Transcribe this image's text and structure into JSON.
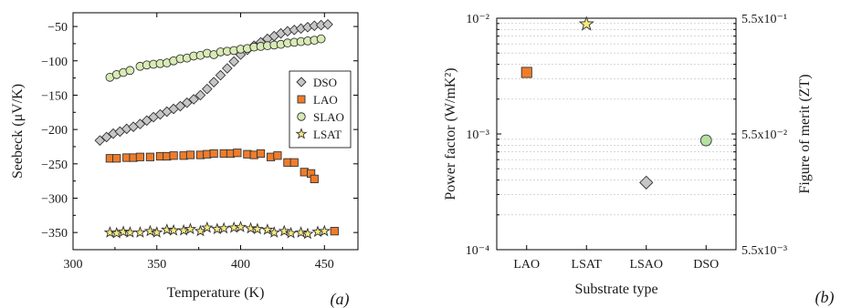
{
  "chart_data": [
    {
      "type": "scatter",
      "xlabel": "Temperature (K)",
      "ylabel": "Seebeck (μV/K)",
      "panel_label": "(a)",
      "xlim": [
        300,
        470
      ],
      "ylim": [
        -375,
        -30
      ],
      "xticks": [
        300,
        350,
        400,
        450
      ],
      "yticks": [
        -50,
        -100,
        -150,
        -200,
        -250,
        -300,
        -350
      ],
      "legend_position": "right",
      "grid": false,
      "series": [
        {
          "name": "DSO",
          "marker": "diamond",
          "color": "#c6c6c6",
          "x": [
            316,
            320,
            324,
            328,
            332,
            336,
            340,
            344,
            348,
            352,
            356,
            360,
            364,
            368,
            372,
            376,
            380,
            384,
            388,
            392,
            396,
            400,
            404,
            408,
            412,
            416,
            420,
            424,
            428,
            432,
            436,
            440,
            444,
            448,
            452
          ],
          "y": [
            -216,
            -211,
            -206,
            -203,
            -199,
            -196,
            -192,
            -187,
            -182,
            -178,
            -174,
            -170,
            -166,
            -161,
            -156,
            -150,
            -141,
            -131,
            -121,
            -111,
            -101,
            -91,
            -84,
            -78,
            -73,
            -68,
            -64,
            -60,
            -57,
            -55,
            -53,
            -51,
            -49,
            -48,
            -47
          ]
        },
        {
          "name": "LAO",
          "color": "#ee7d2b",
          "marker": "square",
          "x": [
            322,
            326,
            332,
            336,
            340,
            346,
            352,
            356,
            360,
            366,
            370,
            376,
            380,
            384,
            390,
            394,
            398,
            404,
            408,
            412,
            418,
            422,
            428,
            432,
            438,
            442,
            444,
            456
          ],
          "y": [
            -242,
            -242,
            -241,
            -241,
            -240,
            -240,
            -239,
            -239,
            -238,
            -238,
            -237,
            -237,
            -236,
            -235,
            -235,
            -235,
            -234,
            -236,
            -237,
            -235,
            -240,
            -238,
            -248,
            -248,
            -262,
            -264,
            -272,
            -348
          ]
        },
        {
          "name": "SLAO",
          "color": "#d9ebb5",
          "marker": "circle",
          "x": [
            322,
            326,
            330,
            334,
            340,
            344,
            348,
            352,
            356,
            360,
            364,
            368,
            372,
            376,
            380,
            384,
            388,
            392,
            396,
            400,
            404,
            408,
            412,
            416,
            420,
            424,
            428,
            432,
            436,
            440,
            444,
            448
          ],
          "y": [
            -124,
            -120,
            -117,
            -114,
            -108,
            -106,
            -105,
            -104,
            -103,
            -100,
            -97,
            -96,
            -93,
            -92,
            -89,
            -91,
            -87,
            -86,
            -85,
            -83,
            -82,
            -80,
            -79,
            -78,
            -77,
            -76,
            -74,
            -73,
            -72,
            -71,
            -70,
            -68
          ]
        },
        {
          "name": "LSAT",
          "color": "#f8ea7a",
          "marker": "star",
          "x": [
            322,
            326,
            330,
            334,
            340,
            346,
            350,
            356,
            360,
            366,
            370,
            376,
            380,
            386,
            390,
            396,
            400,
            406,
            410,
            416,
            420,
            426,
            430,
            436,
            440,
            446,
            450
          ],
          "y": [
            -350,
            -351,
            -349,
            -350,
            -350,
            -348,
            -350,
            -346,
            -347,
            -347,
            -345,
            -348,
            -343,
            -345,
            -344,
            -343,
            -342,
            -344,
            -345,
            -346,
            -350,
            -348,
            -351,
            -350,
            -352,
            -349,
            -348
          ]
        }
      ]
    },
    {
      "type": "scatter",
      "xlabel": "Substrate type",
      "ylabel": "Power factor (W/mK²)",
      "ylabel2": "Figure of merit (ZT)",
      "panel_label": "(b)",
      "categories": [
        "LAO",
        "LSAT",
        "LSAO",
        "DSO"
      ],
      "y_scale": "log",
      "ylim": [
        0.0001,
        0.01
      ],
      "yticks_left": [
        "10⁻⁴",
        "10⁻³",
        "10⁻²"
      ],
      "yticks_right": [
        "5.5x10⁻³",
        "5.5x10⁻²",
        "5.5x10⁻¹"
      ],
      "grid": true,
      "points": [
        {
          "category": "LAO",
          "value": 0.0034,
          "marker": "square",
          "color": "#ee7d2b"
        },
        {
          "category": "LSAT",
          "value": 0.0089,
          "marker": "star",
          "color": "#f8ea7a"
        },
        {
          "category": "LSAO",
          "value": 0.00038,
          "marker": "diamond",
          "color": "#c6c6c6"
        },
        {
          "category": "DSO",
          "value": 0.00088,
          "marker": "circle",
          "color": "#b5e0a0"
        }
      ]
    }
  ]
}
